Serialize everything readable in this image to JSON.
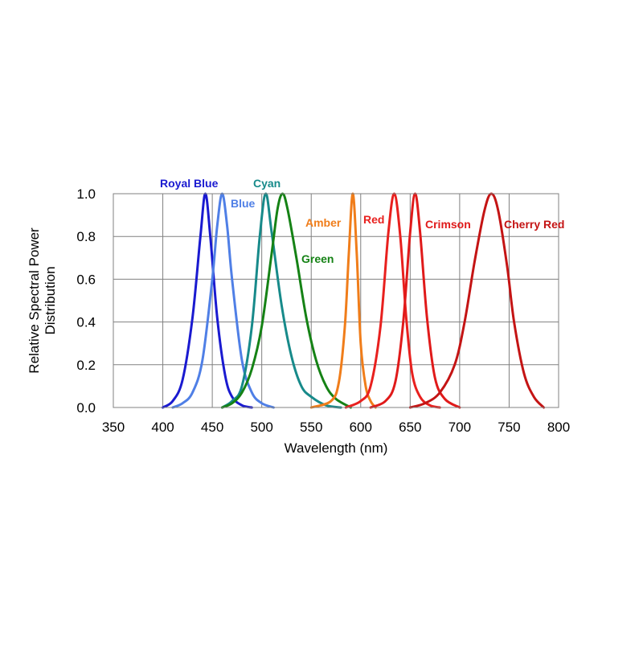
{
  "chart_data": {
    "type": "line",
    "title": "",
    "xlabel": "Wavelength (nm)",
    "ylabel": [
      "Relative Spectral Power",
      "Distribution"
    ],
    "xlim": [
      350,
      800
    ],
    "ylim": [
      0,
      1.0
    ],
    "x_ticks": [
      350,
      400,
      450,
      500,
      550,
      600,
      650,
      700,
      750,
      800
    ],
    "x_tick_labels": [
      "350",
      "400",
      "450",
      "500",
      "550",
      "600",
      "650",
      "700",
      "750",
      "800"
    ],
    "y_ticks": [
      0,
      0.2,
      0.4,
      0.6,
      0.8,
      1.0
    ],
    "y_tick_labels": [
      "0.0",
      "0.2",
      "0.4",
      "0.6",
      "0.8",
      "1.0"
    ],
    "grid": true,
    "legend": "inline labels",
    "series": [
      {
        "name": "Royal Blue",
        "color": "#1a1ad0",
        "peak": 443,
        "x_start": 400,
        "x_end": 490,
        "points": [
          [
            400,
            0.0
          ],
          [
            410,
            0.03
          ],
          [
            420,
            0.13
          ],
          [
            430,
            0.42
          ],
          [
            438,
            0.8
          ],
          [
            443,
            1.0
          ],
          [
            448,
            0.8
          ],
          [
            455,
            0.42
          ],
          [
            463,
            0.15
          ],
          [
            470,
            0.05
          ],
          [
            480,
            0.01
          ],
          [
            490,
            0.0
          ]
        ]
      },
      {
        "name": "Blue",
        "color": "#4f7fe6",
        "peak": 460,
        "x_start": 410,
        "x_end": 512,
        "points": [
          [
            410,
            0.0
          ],
          [
            420,
            0.02
          ],
          [
            430,
            0.07
          ],
          [
            440,
            0.22
          ],
          [
            450,
            0.6
          ],
          [
            455,
            0.85
          ],
          [
            460,
            1.0
          ],
          [
            465,
            0.85
          ],
          [
            470,
            0.6
          ],
          [
            480,
            0.22
          ],
          [
            490,
            0.07
          ],
          [
            500,
            0.02
          ],
          [
            512,
            0.0
          ]
        ]
      },
      {
        "name": "Cyan",
        "color": "#178a8a",
        "peak": 504,
        "x_start": 460,
        "x_end": 580,
        "points": [
          [
            460,
            0.0
          ],
          [
            470,
            0.03
          ],
          [
            480,
            0.1
          ],
          [
            490,
            0.38
          ],
          [
            498,
            0.8
          ],
          [
            504,
            1.0
          ],
          [
            510,
            0.82
          ],
          [
            520,
            0.48
          ],
          [
            530,
            0.24
          ],
          [
            540,
            0.1
          ],
          [
            550,
            0.05
          ],
          [
            565,
            0.01
          ],
          [
            580,
            0.0
          ]
        ]
      },
      {
        "name": "Green",
        "color": "#158215",
        "peak": 521,
        "x_start": 460,
        "x_end": 590,
        "points": [
          [
            460,
            0.0
          ],
          [
            470,
            0.02
          ],
          [
            480,
            0.07
          ],
          [
            490,
            0.18
          ],
          [
            500,
            0.38
          ],
          [
            510,
            0.72
          ],
          [
            516,
            0.93
          ],
          [
            521,
            1.0
          ],
          [
            526,
            0.93
          ],
          [
            535,
            0.7
          ],
          [
            545,
            0.42
          ],
          [
            555,
            0.22
          ],
          [
            565,
            0.1
          ],
          [
            575,
            0.04
          ],
          [
            590,
            0.0
          ]
        ]
      },
      {
        "name": "Amber",
        "color": "#f07d1a",
        "peak": 592,
        "x_start": 550,
        "x_end": 615,
        "points": [
          [
            550,
            0.0
          ],
          [
            570,
            0.03
          ],
          [
            578,
            0.12
          ],
          [
            584,
            0.38
          ],
          [
            588,
            0.72
          ],
          [
            592,
            1.0
          ],
          [
            596,
            0.72
          ],
          [
            600,
            0.3
          ],
          [
            605,
            0.1
          ],
          [
            610,
            0.03
          ],
          [
            615,
            0.0
          ]
        ]
      },
      {
        "name": "Red",
        "color": "#e8201e",
        "peak": 634,
        "x_start": 585,
        "x_end": 680,
        "points": [
          [
            585,
            0.0
          ],
          [
            600,
            0.03
          ],
          [
            610,
            0.1
          ],
          [
            620,
            0.38
          ],
          [
            628,
            0.82
          ],
          [
            634,
            1.0
          ],
          [
            640,
            0.8
          ],
          [
            646,
            0.42
          ],
          [
            652,
            0.16
          ],
          [
            660,
            0.05
          ],
          [
            670,
            0.01
          ],
          [
            680,
            0.0
          ]
        ]
      },
      {
        "name": "Crimson",
        "color": "#e01a1a",
        "peak": 655,
        "x_start": 610,
        "x_end": 700,
        "points": [
          [
            610,
            0.0
          ],
          [
            625,
            0.03
          ],
          [
            635,
            0.12
          ],
          [
            643,
            0.4
          ],
          [
            650,
            0.82
          ],
          [
            655,
            1.0
          ],
          [
            660,
            0.82
          ],
          [
            667,
            0.42
          ],
          [
            675,
            0.14
          ],
          [
            685,
            0.04
          ],
          [
            700,
            0.0
          ]
        ]
      },
      {
        "name": "Cherry Red",
        "color": "#c41414",
        "peak": 732,
        "x_start": 650,
        "x_end": 785,
        "points": [
          [
            650,
            0.0
          ],
          [
            665,
            0.02
          ],
          [
            680,
            0.07
          ],
          [
            695,
            0.2
          ],
          [
            705,
            0.4
          ],
          [
            715,
            0.68
          ],
          [
            725,
            0.92
          ],
          [
            732,
            1.0
          ],
          [
            739,
            0.92
          ],
          [
            748,
            0.66
          ],
          [
            755,
            0.4
          ],
          [
            765,
            0.16
          ],
          [
            775,
            0.05
          ],
          [
            785,
            0.0
          ]
        ]
      }
    ]
  }
}
